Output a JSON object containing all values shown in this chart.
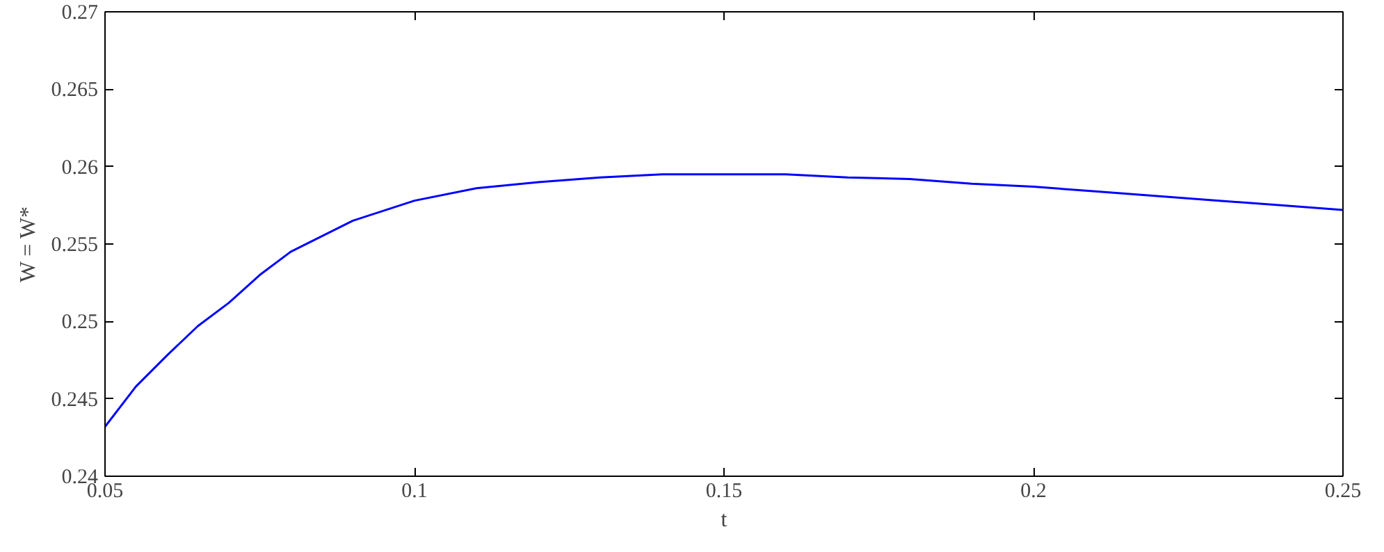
{
  "chart_data": {
    "type": "line",
    "xlabel": "t",
    "ylabel": "W = W*",
    "x": [
      0.05,
      0.055,
      0.06,
      0.065,
      0.07,
      0.075,
      0.08,
      0.09,
      0.1,
      0.11,
      0.12,
      0.13,
      0.14,
      0.15,
      0.16,
      0.17,
      0.18,
      0.19,
      0.2,
      0.21,
      0.22,
      0.23,
      0.24,
      0.25
    ],
    "series": [
      {
        "color": "#0000ff",
        "values": [
          0.2432,
          0.2458,
          0.2478,
          0.2497,
          0.2512,
          0.253,
          0.2545,
          0.2565,
          0.2578,
          0.2586,
          0.259,
          0.2593,
          0.2595,
          0.2595,
          0.2595,
          0.2593,
          0.2592,
          0.2589,
          0.2587,
          0.2584,
          0.2581,
          0.2578,
          0.2575,
          0.2572
        ]
      }
    ],
    "xlim": [
      0.05,
      0.25
    ],
    "xticks": [
      0.05,
      0.1,
      0.15,
      0.2,
      0.25
    ],
    "ylim": [
      0.24,
      0.27
    ],
    "yticks": [
      0.24,
      0.245,
      0.25,
      0.255,
      0.26,
      0.265,
      0.27
    ],
    "grid": false,
    "marker": "none",
    "line_style": "solid"
  }
}
